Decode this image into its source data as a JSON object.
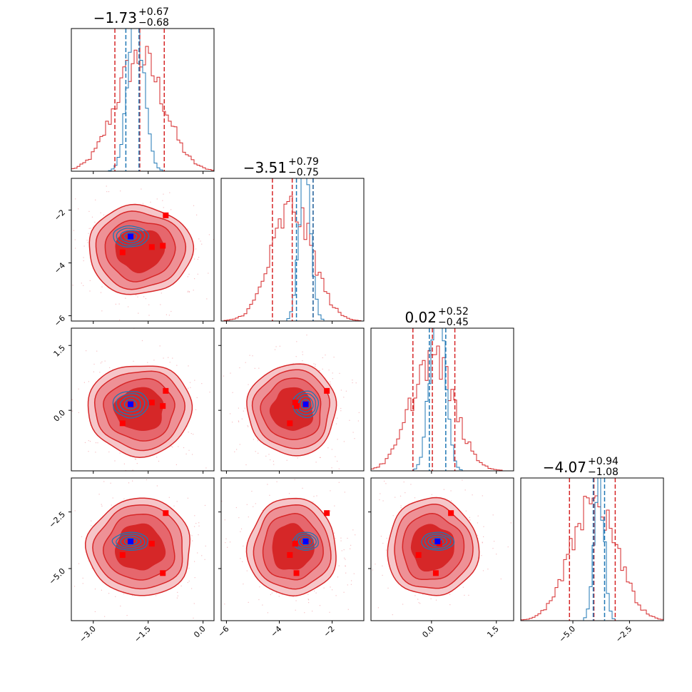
{
  "chart_data": {
    "type": "corner",
    "parameters": 4,
    "colors": {
      "primary": "#d62728",
      "secondary": "#1f77b4",
      "marker_primary": "#ff0000",
      "marker_secondary": "#0000ff"
    },
    "titles": [
      {
        "median": "−1.73",
        "plus": "+0.67",
        "minus": "−0.68"
      },
      {
        "median": "−3.51",
        "plus": "+0.79",
        "minus": "−0.75"
      },
      {
        "median": "0.02",
        "plus": "+0.52",
        "minus": "−0.45"
      },
      {
        "median": "−4.07",
        "plus": "+0.94",
        "minus": "−1.08"
      }
    ],
    "axis_ranges": [
      [
        -3.6,
        0.3
      ],
      [
        -6.2,
        -0.8
      ],
      [
        -1.4,
        1.9
      ],
      [
        -7.3,
        -1.0
      ]
    ],
    "ticks": [
      {
        "values": [
          -3.0,
          -1.5,
          0.0
        ],
        "labels": [
          "−3.0",
          "−1.5",
          "0.0"
        ]
      },
      {
        "values": [
          -6,
          -4,
          -2
        ],
        "labels": [
          "−6",
          "−4",
          "−2"
        ]
      },
      {
        "values": [
          0.0,
          1.5
        ],
        "labels": [
          "0.0",
          "1.5"
        ]
      },
      {
        "values": [
          -5.0,
          -2.5
        ],
        "labels": [
          "−5.0",
          "−2.5"
        ]
      }
    ],
    "primary_quantiles": [
      [
        -2.41,
        -1.73,
        -1.06
      ],
      [
        -4.26,
        -3.51,
        -2.72
      ],
      [
        -0.43,
        0.02,
        0.54
      ],
      [
        -5.15,
        -4.07,
        -3.13
      ]
    ],
    "secondary_quantiles": [
      [
        -2.11,
        -1.75,
        null
      ],
      [
        -3.35,
        -2.72,
        null
      ],
      [
        -0.05,
        0.33,
        null
      ],
      [
        -4.1,
        -3.6,
        null
      ]
    ],
    "primary_hist": [
      {
        "center": -1.73,
        "sigma": 0.66
      },
      {
        "center": -3.51,
        "sigma": 0.78
      },
      {
        "center": 0.02,
        "sigma": 0.49
      },
      {
        "center": -4.07,
        "sigma": 1.0
      }
    ],
    "secondary_hist": [
      {
        "center": -1.83,
        "sigma": 0.22
      },
      {
        "center": -3.03,
        "sigma": 0.22
      },
      {
        "center": 0.14,
        "sigma": 0.17
      },
      {
        "center": -3.85,
        "sigma": 0.22
      }
    ],
    "secondary_center": [
      -1.98,
      -3.0,
      0.14,
      -3.8
    ],
    "primary_points": [
      [
        -1.02,
        -2.2,
        0.45,
        -2.55
      ],
      [
        -2.2,
        -3.6,
        -0.3,
        -4.4
      ],
      [
        -1.4,
        -3.4,
        0.18,
        -3.9
      ],
      [
        -1.1,
        -3.35,
        0.1,
        -5.2
      ]
    ]
  }
}
